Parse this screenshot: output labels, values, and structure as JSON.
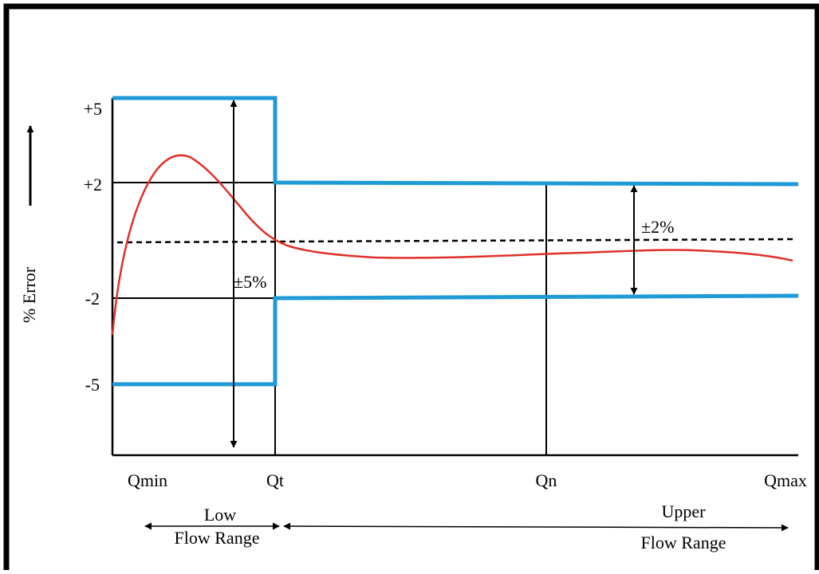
{
  "y_axis": {
    "label": "% Error",
    "ticks": [
      "+5",
      "+2",
      "-2",
      "-5"
    ]
  },
  "x_axis": {
    "ticks": [
      "Qmin",
      "Qt",
      "Qn",
      "Qmax"
    ]
  },
  "annotations": {
    "low_tolerance": "±5%",
    "high_tolerance": "±2%"
  },
  "ranges": {
    "low": [
      "Low",
      "Flow Range"
    ],
    "upper": [
      "Upper",
      "Flow Range"
    ]
  },
  "colors": {
    "limit_lines": "#1f9ad6",
    "error_curve": "#e0302a",
    "axes": "#000000"
  }
}
